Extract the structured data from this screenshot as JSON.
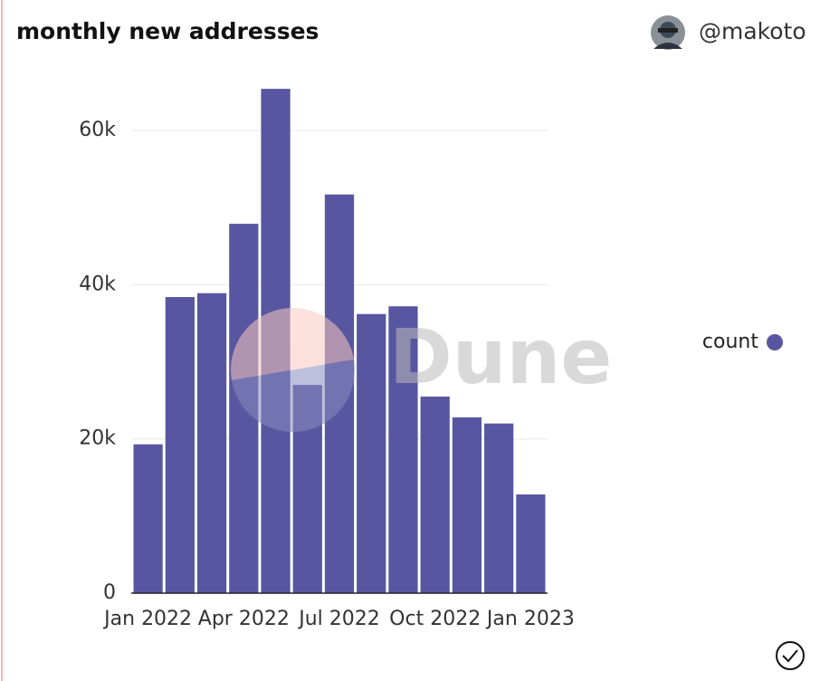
{
  "header": {
    "title": "monthly new addresses",
    "user": "@makoto"
  },
  "watermark": "Dune",
  "chart_data": {
    "type": "bar",
    "categories": [
      "Jan 2022",
      null,
      null,
      "Apr 2022",
      null,
      null,
      "Jul 2022",
      null,
      null,
      "Oct 2022",
      null,
      null,
      "Jan 2023"
    ],
    "series": [
      {
        "name": "count",
        "color": "#5856a0",
        "values": [
          19300,
          38400,
          38900,
          47900,
          65400,
          27000,
          51700,
          36200,
          37200,
          25500,
          22800,
          22000,
          12800
        ]
      }
    ],
    "ylim": [
      0,
      66000
    ],
    "yticks": [
      0,
      {
        "value": 20000,
        "label": "20k"
      },
      {
        "value": 40000,
        "label": "40k"
      },
      {
        "value": 60000,
        "label": "60k"
      }
    ],
    "grid": true,
    "legend": "right"
  }
}
